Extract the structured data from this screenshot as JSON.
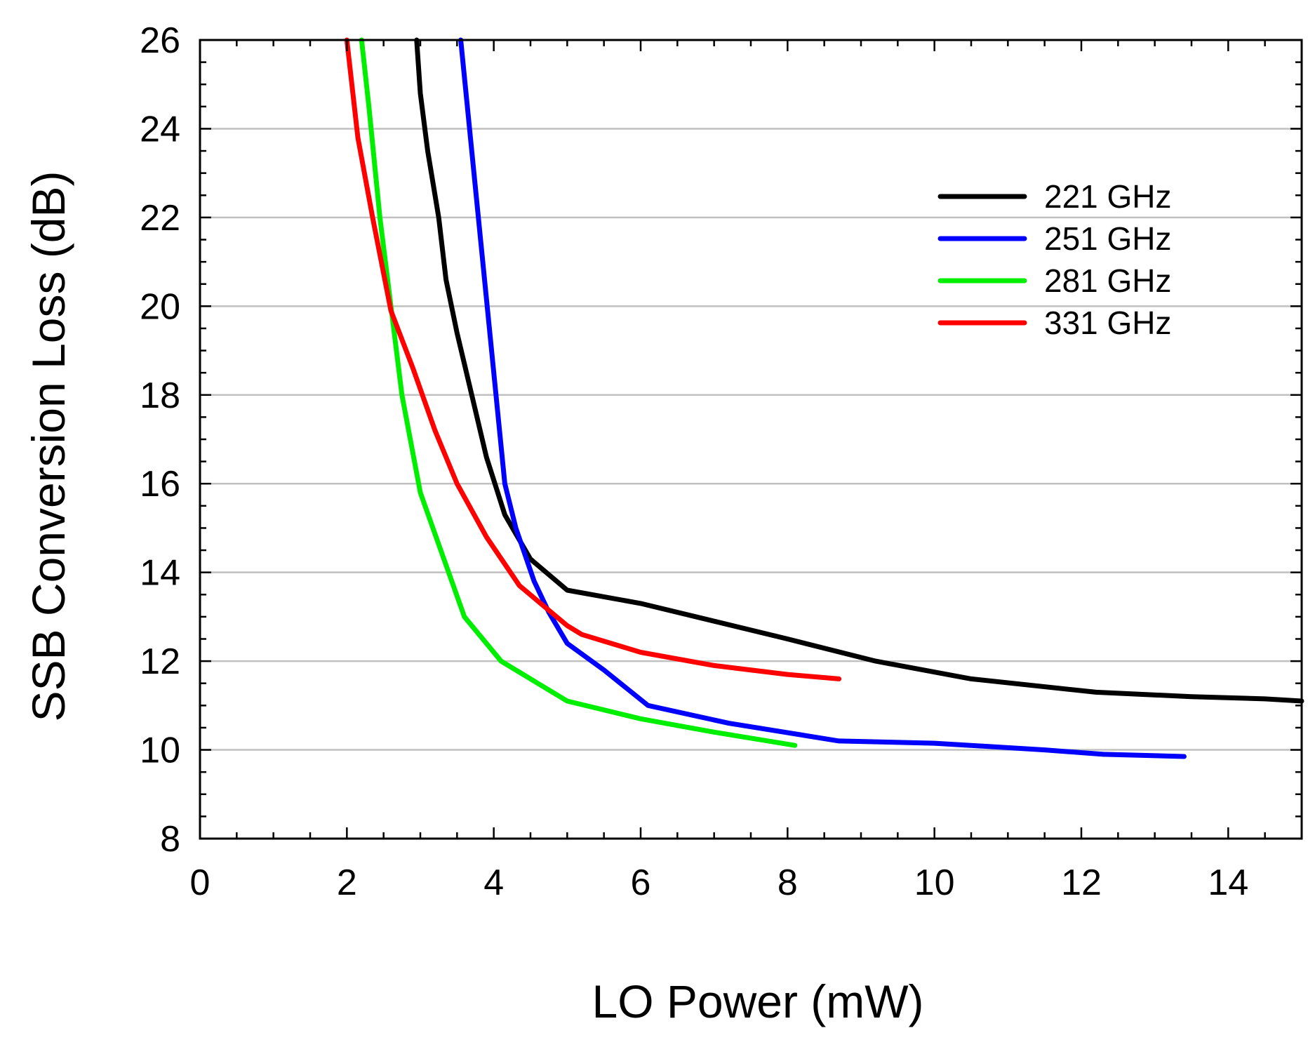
{
  "chart_data": {
    "type": "line",
    "title": "",
    "xlabel": "LO Power (mW)",
    "ylabel": "SSB Conversion Loss (dB)",
    "xlim": [
      0,
      15
    ],
    "ylim": [
      8,
      26
    ],
    "xticks": [
      0,
      2,
      4,
      6,
      8,
      10,
      12,
      14
    ],
    "yticks": [
      8,
      10,
      12,
      14,
      16,
      18,
      20,
      22,
      24,
      26
    ],
    "grid": "horizontal",
    "legend_position": "top-right",
    "series": [
      {
        "name": "221 GHz",
        "color": "#000000",
        "x": [
          2.95,
          3.0,
          3.1,
          3.25,
          3.35,
          3.5,
          3.7,
          3.9,
          4.15,
          4.5,
          5.0,
          6.0,
          7.0,
          8.0,
          9.2,
          10.5,
          12.2,
          13.5,
          14.5,
          15.0
        ],
        "y": [
          26.0,
          24.8,
          23.5,
          22.0,
          20.6,
          19.4,
          18.0,
          16.6,
          15.3,
          14.3,
          13.6,
          13.3,
          12.9,
          12.5,
          12.0,
          11.6,
          11.3,
          11.2,
          11.15,
          11.1
        ]
      },
      {
        "name": "251 GHz",
        "color": "#0000ff",
        "x": [
          3.55,
          3.7,
          3.85,
          4.0,
          4.15,
          4.3,
          4.55,
          4.75,
          5.0,
          5.5,
          6.1,
          7.2,
          8.7,
          10.0,
          11.5,
          12.3,
          13.4
        ],
        "y": [
          26.0,
          23.5,
          21.0,
          18.5,
          16.0,
          15.0,
          13.8,
          13.1,
          12.4,
          11.8,
          11.0,
          10.6,
          10.2,
          10.15,
          10.0,
          9.9,
          9.85
        ]
      },
      {
        "name": "281 GHz",
        "color": "#00ee00",
        "x": [
          2.2,
          2.3,
          2.45,
          2.6,
          2.75,
          3.0,
          3.3,
          3.6,
          4.1,
          5.0,
          6.0,
          7.0,
          8.1
        ],
        "y": [
          26.0,
          24.5,
          22.0,
          20.0,
          18.0,
          15.8,
          14.4,
          13.0,
          12.0,
          11.1,
          10.7,
          10.4,
          10.1
        ]
      },
      {
        "name": "331 GHz",
        "color": "#ff0000",
        "x": [
          2.0,
          2.15,
          2.35,
          2.6,
          2.9,
          3.2,
          3.5,
          3.9,
          4.35,
          5.0,
          5.2,
          6.0,
          7.0,
          8.0,
          8.7
        ],
        "y": [
          26.0,
          23.8,
          22.0,
          19.9,
          18.6,
          17.2,
          16.0,
          14.8,
          13.7,
          12.8,
          12.6,
          12.2,
          11.9,
          11.7,
          11.6
        ]
      }
    ]
  }
}
